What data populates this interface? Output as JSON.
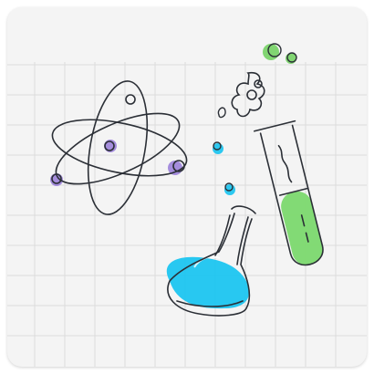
{
  "illustration": {
    "subject": "science-doodle",
    "palette": {
      "card_background": "#f4f4f4",
      "grid_line": "#dcdcdc",
      "ink": "#2b2f36",
      "liquid_blue": "#16c3f0",
      "liquid_green": "#7bd86e",
      "bubble_green": "#6ccf5a",
      "nucleus_purple": "#8b6bd6"
    },
    "icons": [
      "atom-icon",
      "erlenmeyer-flask-icon",
      "test-tube-icon",
      "bubbles-icon",
      "steam-icon"
    ]
  }
}
